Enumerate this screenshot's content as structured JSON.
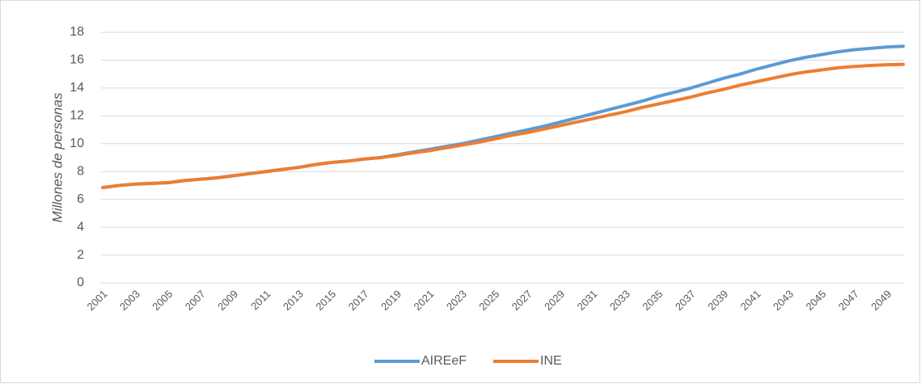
{
  "chart_data": {
    "type": "line",
    "y_label": "Millones de personas",
    "categories": [
      "2001",
      null,
      "2003",
      null,
      "2005",
      null,
      "2007",
      null,
      "2009",
      null,
      "2011",
      null,
      "2013",
      null,
      "2015",
      null,
      "2017",
      null,
      "2019",
      null,
      "2021",
      null,
      "2023",
      null,
      "2025",
      null,
      "2027",
      null,
      "2029",
      null,
      "2031",
      null,
      "2033",
      null,
      "2035",
      null,
      "2037",
      null,
      "2039",
      null,
      "2041",
      null,
      "2043",
      null,
      "2045",
      null,
      "2047",
      null,
      "2049",
      null
    ],
    "series": [
      {
        "name": "AIREeF",
        "color": "#5b9bd5",
        "values": [
          6.85,
          7.0,
          7.1,
          7.15,
          7.2,
          7.35,
          7.45,
          7.55,
          7.7,
          7.85,
          8.0,
          8.15,
          8.3,
          8.5,
          8.65,
          8.75,
          8.9,
          9.0,
          9.2,
          9.4,
          9.6,
          9.8,
          10.0,
          10.25,
          10.5,
          10.75,
          11.0,
          11.25,
          11.55,
          11.85,
          12.15,
          12.45,
          12.75,
          13.05,
          13.4,
          13.7,
          14.0,
          14.35,
          14.7,
          15.0,
          15.35,
          15.65,
          15.95,
          16.2,
          16.4,
          16.6,
          16.75,
          16.85,
          16.95,
          17.0
        ]
      },
      {
        "name": "INE",
        "color": "#ed7d31",
        "values": [
          6.85,
          7.0,
          7.1,
          7.15,
          7.2,
          7.35,
          7.45,
          7.55,
          7.7,
          7.85,
          8.0,
          8.15,
          8.3,
          8.5,
          8.65,
          8.75,
          8.9,
          9.0,
          9.15,
          9.35,
          9.5,
          9.7,
          9.9,
          10.1,
          10.35,
          10.6,
          10.8,
          11.05,
          11.3,
          11.55,
          11.8,
          12.05,
          12.3,
          12.6,
          12.85,
          13.1,
          13.35,
          13.65,
          13.9,
          14.2,
          14.45,
          14.7,
          14.95,
          15.15,
          15.3,
          15.45,
          15.55,
          15.62,
          15.67,
          15.7
        ]
      }
    ],
    "ylim": [
      0,
      18
    ],
    "yticks": [
      0,
      2,
      4,
      6,
      8,
      10,
      12,
      14,
      16,
      18
    ],
    "grid": true,
    "legend": "bottom"
  }
}
